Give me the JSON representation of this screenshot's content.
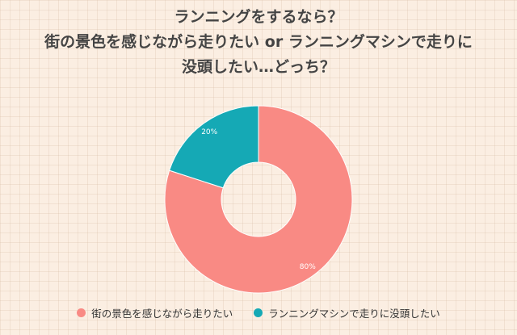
{
  "title_lines": [
    "ランニングをするなら？",
    "街の景色を感じながら走りたい or ランニングマシンで走りに",
    "没頭したい…どっち？"
  ],
  "chart_data": {
    "type": "pie",
    "style": "donut",
    "legend_position": "bottom",
    "slices": [
      {
        "label": "街の景色を感じながら走りたい",
        "value": 80,
        "value_label": "80%",
        "color": "#f98a84"
      },
      {
        "label": "ランニングマシンで走りに没頭したい",
        "value": 20,
        "value_label": "20%",
        "color": "#15a9b5"
      }
    ]
  }
}
